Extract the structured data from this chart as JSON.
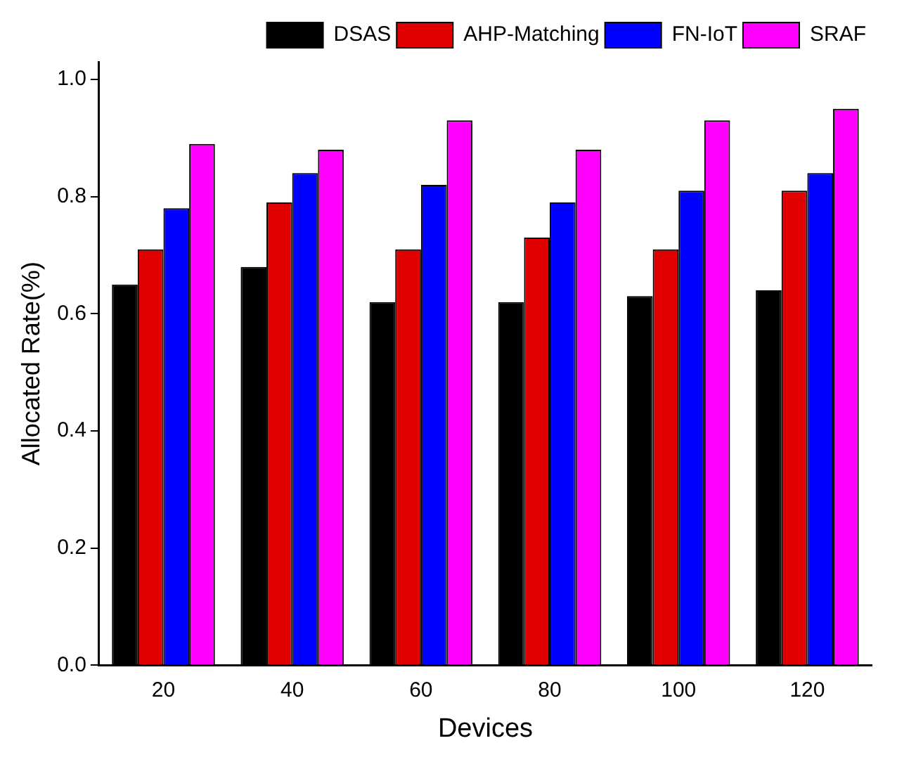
{
  "chart_data": {
    "type": "bar",
    "xlabel": "Devices",
    "ylabel": "Allocated Rate(%)",
    "categories": [
      "20",
      "40",
      "60",
      "80",
      "100",
      "120"
    ],
    "series": [
      {
        "name": "DSAS",
        "color": "#000000",
        "values": [
          0.65,
          0.68,
          0.62,
          0.62,
          0.63,
          0.64
        ]
      },
      {
        "name": "AHP-Matching",
        "color": "#e00000",
        "values": [
          0.71,
          0.79,
          0.71,
          0.73,
          0.71,
          0.81
        ]
      },
      {
        "name": "FN-IoT",
        "color": "#0000ff",
        "values": [
          0.78,
          0.84,
          0.82,
          0.79,
          0.81,
          0.84
        ]
      },
      {
        "name": "SRAF",
        "color": "#ff00ff",
        "values": [
          0.89,
          0.88,
          0.93,
          0.88,
          0.93,
          0.95
        ]
      }
    ],
    "ylim": [
      0,
      1.03
    ],
    "yticks": [
      {
        "value": 0,
        "label": "0.0"
      },
      {
        "value": 0.2,
        "label": "0.2"
      },
      {
        "value": 0.4,
        "label": "0.4"
      },
      {
        "value": 0.6,
        "label": "0.6"
      },
      {
        "value": 0.8,
        "label": "0.8"
      },
      {
        "value": 1,
        "label": "1.0"
      }
    ],
    "grid": false,
    "legend": "top right"
  }
}
